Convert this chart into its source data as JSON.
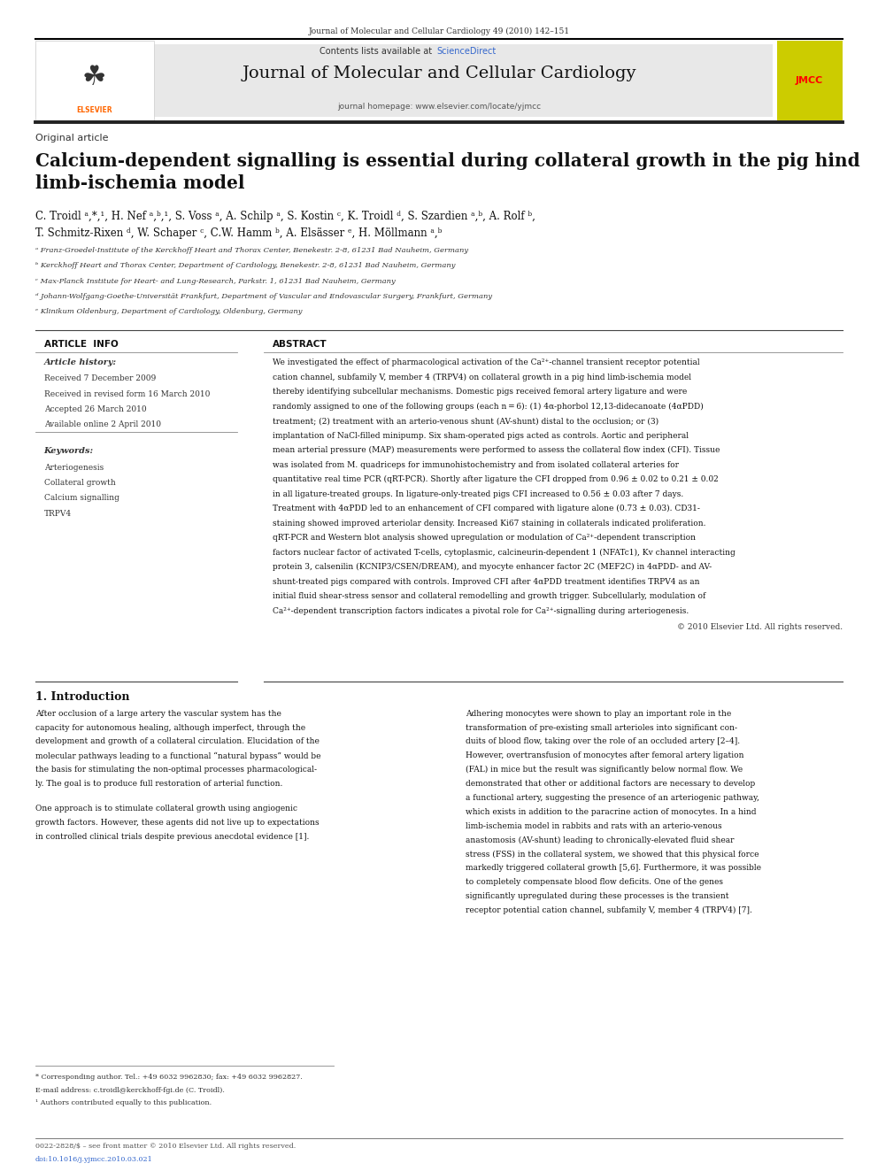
{
  "page_width": 9.92,
  "page_height": 13.23,
  "bg_color": "#ffffff",
  "top_journal_ref": "Journal of Molecular and Cellular Cardiology 49 (2010) 142–151",
  "header_bg": "#e8e8e8",
  "header_contents": "Contents lists available at",
  "header_sciencedirect": "ScienceDirect",
  "header_sciencedirect_color": "#3366cc",
  "header_journal_name": "Journal of Molecular and Cellular Cardiology",
  "header_homepage": "journal homepage: www.elsevier.com/locate/yjmcc",
  "section_label": "Original article",
  "article_title": "Calcium-dependent signalling is essential during collateral growth in the pig hind\nlimb-ischemia model",
  "authors_line1": "C. Troidl ᵃ,*,¹, H. Nef ᵃ,ᵇ,¹, S. Voss ᵃ, A. Schilp ᵃ, S. Kostin ᶜ, K. Troidl ᵈ, S. Szardien ᵃ,ᵇ, A. Rolf ᵇ,",
  "authors_line2": "T. Schmitz-Rixen ᵈ, W. Schaper ᶜ, C.W. Hamm ᵇ, A. Elsässer ᵉ, H. Möllmann ᵃ,ᵇ",
  "affil_a": "ᵃ Franz-Groedel-Institute of the Kerckhoff Heart and Thorax Center, Benekestr. 2-8, 61231 Bad Nauheim, Germany",
  "affil_b": "ᵇ Kerckhoff Heart and Thorax Center, Department of Cardiology, Benekestr. 2-8, 61231 Bad Nauheim, Germany",
  "affil_c": "ᶜ Max-Planck Institute for Heart- and Lung-Research, Parkstr. 1, 61231 Bad Nauheim, Germany",
  "affil_d": "ᵈ Johann-Wolfgang-Goethe-Universität Frankfurt, Department of Vascular and Endovascular Surgery, Frankfurt, Germany",
  "affil_e": "ᵉ Klinikum Oldenburg, Department of Cardiology, Oldenburg, Germany",
  "article_info_title": "ARTICLE  INFO",
  "article_history_label": "Article history:",
  "received1": "Received 7 December 2009",
  "received2": "Received in revised form 16 March 2010",
  "accepted": "Accepted 26 March 2010",
  "available": "Available online 2 April 2010",
  "keywords_label": "Keywords:",
  "keywords": [
    "Arteriogenesis",
    "Collateral growth",
    "Calcium signalling",
    "TRPV4"
  ],
  "abstract_title": "ABSTRACT",
  "abstract_lines": [
    "We investigated the effect of pharmacological activation of the Ca²⁺-channel transient receptor potential",
    "cation channel, subfamily V, member 4 (TRPV4) on collateral growth in a pig hind limb-ischemia model",
    "thereby identifying subcellular mechanisms. Domestic pigs received femoral artery ligature and were",
    "randomly assigned to one of the following groups (each n = 6): (1) 4α-phorbol 12,13-didecanoate (4αPDD)",
    "treatment; (2) treatment with an arterio-venous shunt (AV-shunt) distal to the occlusion; or (3)",
    "implantation of NaCl-filled minipump. Six sham-operated pigs acted as controls. Aortic and peripheral",
    "mean arterial pressure (MAP) measurements were performed to assess the collateral flow index (CFI). Tissue",
    "was isolated from M. quadriceps for immunohistochemistry and from isolated collateral arteries for",
    "quantitative real time PCR (qRT-PCR). Shortly after ligature the CFI dropped from 0.96 ± 0.02 to 0.21 ± 0.02",
    "in all ligature-treated groups. In ligature-only-treated pigs CFI increased to 0.56 ± 0.03 after 7 days.",
    "Treatment with 4αPDD led to an enhancement of CFI compared with ligature alone (0.73 ± 0.03). CD31-",
    "staining showed improved arteriolar density. Increased Ki67 staining in collaterals indicated proliferation.",
    "qRT-PCR and Western blot analysis showed upregulation or modulation of Ca²⁺-dependent transcription",
    "factors nuclear factor of activated T-cells, cytoplasmic, calcineurin-dependent 1 (NFATc1), Kv channel interacting",
    "protein 3, calsenilin (KCNIP3/CSEN/DREAM), and myocyte enhancer factor 2C (MEF2C) in 4αPDD- and AV-",
    "shunt-treated pigs compared with controls. Improved CFI after 4αPDD treatment identifies TRPV4 as an",
    "initial fluid shear-stress sensor and collateral remodelling and growth trigger. Subcellularly, modulation of",
    "Ca²⁺-dependent transcription factors indicates a pivotal role for Ca²⁺-signalling during arteriogenesis."
  ],
  "copyright": "© 2010 Elsevier Ltd. All rights reserved.",
  "intro_title": "1. Introduction",
  "intro_left_lines": [
    "After occlusion of a large artery the vascular system has the",
    "capacity for autonomous healing, although imperfect, through the",
    "development and growth of a collateral circulation. Elucidation of the",
    "molecular pathways leading to a functional “natural bypass” would be",
    "the basis for stimulating the non-optimal processes pharmacological-",
    "ly. The goal is to produce full restoration of arterial function.",
    "",
    "One approach is to stimulate collateral growth using angiogenic",
    "growth factors. However, these agents did not live up to expectations",
    "in controlled clinical trials despite previous anecdotal evidence [1]."
  ],
  "intro_right_lines": [
    "Adhering monocytes were shown to play an important role in the",
    "transformation of pre-existing small arterioles into significant con-",
    "duits of blood flow, taking over the role of an occluded artery [2–4].",
    "However, overtransfusion of monocytes after femoral artery ligation",
    "(FAL) in mice but the result was significantly below normal flow. We",
    "demonstrated that other or additional factors are necessary to develop",
    "a functional artery, suggesting the presence of an arteriogenic pathway,",
    "which exists in addition to the paracrine action of monocytes. In a hind",
    "limb-ischemia model in rabbits and rats with an arterio-venous",
    "anastomosis (AV-shunt) leading to chronically-elevated fluid shear",
    "stress (FSS) in the collateral system, we showed that this physical force",
    "markedly triggered collateral growth [5,6]. Furthermore, it was possible",
    "to completely compensate blood flow deficits. One of the genes",
    "significantly upregulated during these processes is the transient",
    "receptor potential cation channel, subfamily V, member 4 (TRPV4) [7]."
  ],
  "footnote1": "* Corresponding author. Tel.: +49 6032 9962830; fax: +49 6032 9962827.",
  "footnote2": "E-mail address: c.troidl@kerckhoff-fgi.de (C. Troidl).",
  "footnote3": "¹ Authors contributed equally to this publication.",
  "bottom_line1": "0022-2828/$ – see front matter © 2010 Elsevier Ltd. All rights reserved.",
  "bottom_line2": "doi:10.1016/j.yjmcc.2010.03.021"
}
